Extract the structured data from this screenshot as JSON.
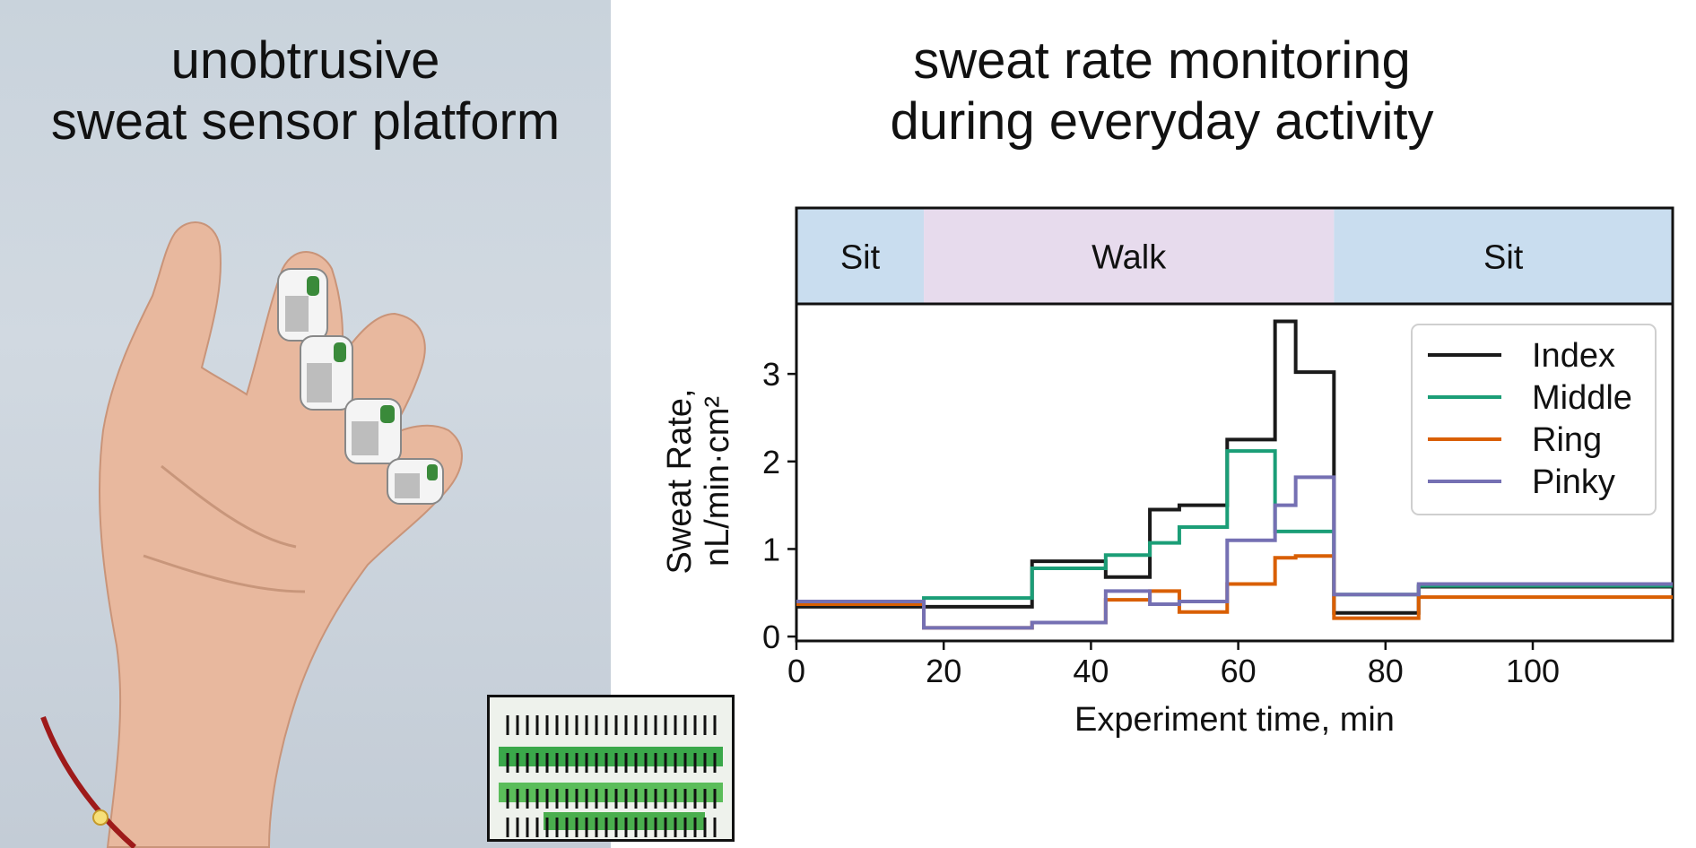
{
  "left_title": [
    "unobtrusive",
    "sweat sensor platform"
  ],
  "right_title": [
    "sweat rate monitoring",
    "during everyday activity"
  ],
  "colors": {
    "sit_band": "#c9ddef",
    "walk_band": "#e7dbed",
    "index": "#1a1a1a",
    "middle": "#1b9e77",
    "ring": "#d95f02",
    "pinky": "#7570b3"
  },
  "chart_data": {
    "type": "line",
    "step": true,
    "xlabel": "Experiment time, min",
    "ylabel": [
      "Sweat Rate,",
      "nL/min·cm²"
    ],
    "xlim": [
      0,
      119
    ],
    "ylim": [
      -0.05,
      3.8
    ],
    "xticks": [
      0,
      20,
      40,
      60,
      80,
      100
    ],
    "yticks": [
      0,
      1,
      2,
      3
    ],
    "grid": false,
    "legend": "top-right",
    "activity_bands": [
      {
        "label": "Sit",
        "start": 0,
        "end": 17.3
      },
      {
        "label": "Walk",
        "start": 17.3,
        "end": 73
      },
      {
        "label": "Sit",
        "start": 73,
        "end": 119
      }
    ],
    "series": [
      {
        "name": "Index",
        "color": "#1a1a1a",
        "x": [
          0,
          17.3,
          32,
          42,
          48,
          52,
          58.5,
          65,
          67.8,
          73,
          84.5,
          119
        ],
        "y": [
          0.34,
          0.34,
          0.86,
          0.68,
          1.45,
          1.5,
          2.25,
          3.6,
          3.02,
          0.27,
          0.57,
          0.57
        ]
      },
      {
        "name": "Middle",
        "color": "#1b9e77",
        "x": [
          0,
          17.3,
          32,
          42,
          48,
          52,
          58.5,
          65,
          67.8,
          73,
          84.5,
          119
        ],
        "y": [
          0.38,
          0.44,
          0.78,
          0.93,
          1.07,
          1.25,
          2.12,
          1.2,
          1.2,
          0.48,
          0.58,
          0.58
        ]
      },
      {
        "name": "Ring",
        "color": "#d95f02",
        "x": [
          0,
          17.3,
          32,
          42,
          48,
          52,
          58.5,
          65,
          67.8,
          73,
          84.5,
          119
        ],
        "y": [
          0.37,
          0.1,
          0.16,
          0.42,
          0.52,
          0.28,
          0.6,
          0.9,
          0.92,
          0.21,
          0.45,
          0.45
        ]
      },
      {
        "name": "Pinky",
        "color": "#7570b3",
        "x": [
          0,
          17.3,
          32,
          42,
          48,
          52,
          58.5,
          65,
          67.8,
          73,
          84.5,
          119
        ],
        "y": [
          0.4,
          0.1,
          0.16,
          0.52,
          0.37,
          0.4,
          1.1,
          1.5,
          1.82,
          0.48,
          0.6,
          0.6
        ]
      }
    ]
  }
}
